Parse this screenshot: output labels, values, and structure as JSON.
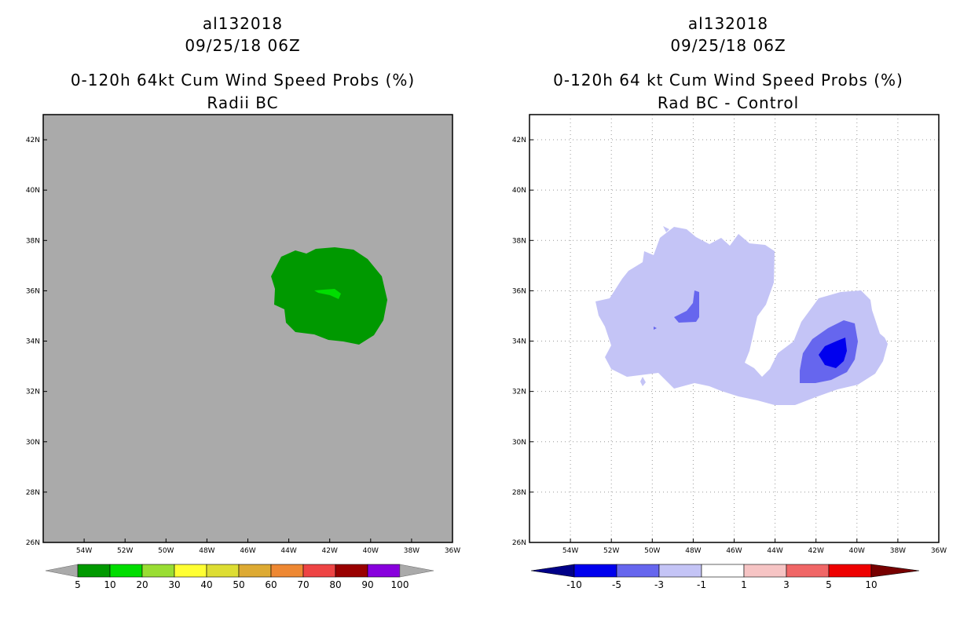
{
  "left_panel": {
    "title_lines": [
      "al132018",
      "09/25/18 06Z",
      "0-120h 64kt Cum Wind Speed Probs (%)",
      "Radii BC"
    ],
    "colorbar": {
      "colors": [
        "#009900",
        "#00dd00",
        "#99dd33",
        "#ffff33",
        "#dddd33",
        "#ddaa33",
        "#ee8833",
        "#ee4444",
        "#990000",
        "#8800dd"
      ],
      "labels": [
        "5",
        "10",
        "20",
        "30",
        "40",
        "50",
        "60",
        "70",
        "80",
        "90",
        "100"
      ],
      "end_arrow_color": "#aaaaaa"
    },
    "background_color": "#aaaaaa",
    "field_color": "#009900",
    "core_color": "#00dd00"
  },
  "right_panel": {
    "title_lines": [
      "al132018",
      "09/25/18 06Z",
      "0-120h 64 kt Cum Wind Speed Probs (%)",
      "Rad BC - Control"
    ],
    "colorbar": {
      "colors": [
        "#0000ee",
        "#6666ee",
        "#c4c4f6",
        "#ffffff",
        "#f6c4c4",
        "#f06666",
        "#ee0000"
      ],
      "labels": [
        "-10",
        "-5",
        "-3",
        "-1",
        "1",
        "3",
        "5",
        "10"
      ],
      "low_arrow_color": "#000088",
      "high_arrow_color": "#770000"
    },
    "levels": {
      "light": "#c4c4f6",
      "medium": "#6666ee",
      "dark": "#0000ee"
    }
  },
  "axes": {
    "lon_labels": [
      "54W",
      "52W",
      "50W",
      "48W",
      "46W",
      "44W",
      "42W",
      "40W",
      "38W",
      "36W"
    ],
    "lat_labels": [
      "26N",
      "28N",
      "30N",
      "32N",
      "34N",
      "36N",
      "38N",
      "40N",
      "42N"
    ],
    "lon_range": [
      -56,
      -36
    ],
    "lat_range": [
      26,
      43
    ]
  }
}
